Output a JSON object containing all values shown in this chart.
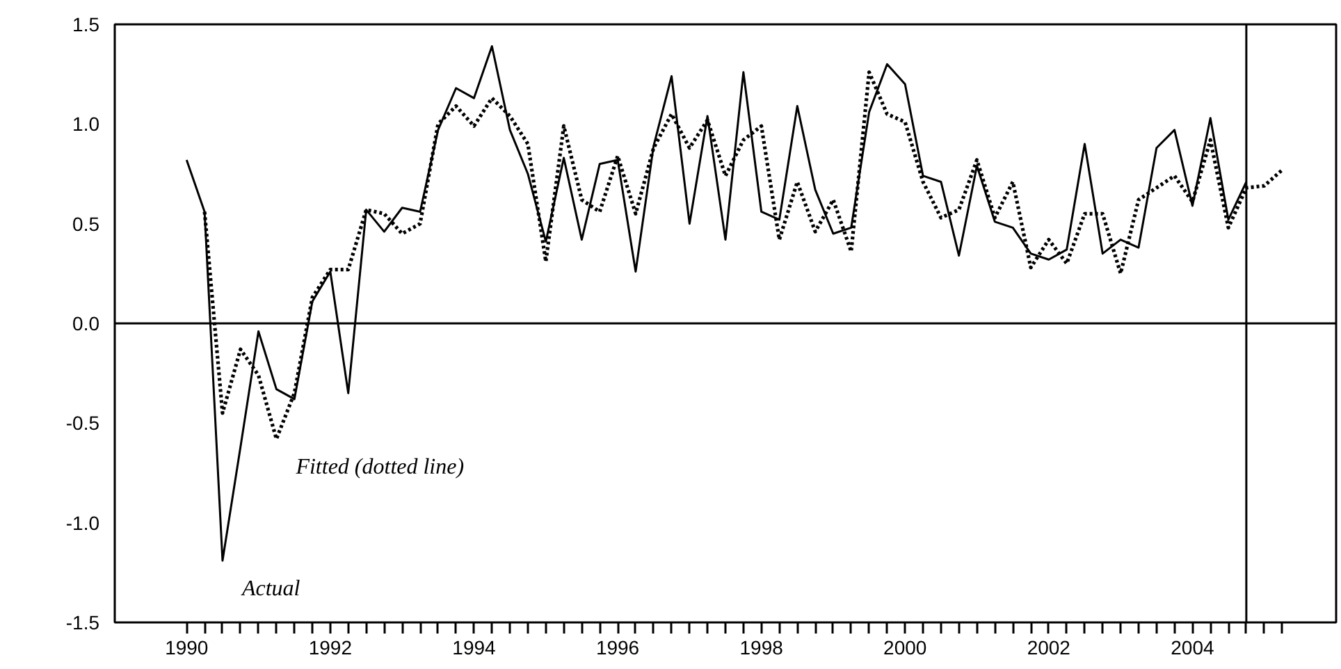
{
  "chart_data": {
    "type": "line",
    "xlim": [
      1989,
      2006
    ],
    "ylim": [
      -1.5,
      1.5
    ],
    "xticks": [
      {
        "value": 1990,
        "label": "1990"
      },
      {
        "value": 1990.25,
        "label": null
      },
      {
        "value": 1990.5,
        "label": null
      },
      {
        "value": 1990.75,
        "label": null
      },
      {
        "value": 1991,
        "label": null
      },
      {
        "value": 1991.25,
        "label": null
      },
      {
        "value": 1991.5,
        "label": null
      },
      {
        "value": 1991.75,
        "label": null
      },
      {
        "value": 1992,
        "label": "1992"
      },
      {
        "value": 1992.25,
        "label": null
      },
      {
        "value": 1992.5,
        "label": null
      },
      {
        "value": 1992.75,
        "label": null
      },
      {
        "value": 1993,
        "label": null
      },
      {
        "value": 1993.25,
        "label": null
      },
      {
        "value": 1993.5,
        "label": null
      },
      {
        "value": 1993.75,
        "label": null
      },
      {
        "value": 1994,
        "label": "1994"
      },
      {
        "value": 1994.25,
        "label": null
      },
      {
        "value": 1994.5,
        "label": null
      },
      {
        "value": 1994.75,
        "label": null
      },
      {
        "value": 1995,
        "label": null
      },
      {
        "value": 1995.25,
        "label": null
      },
      {
        "value": 1995.5,
        "label": null
      },
      {
        "value": 1995.75,
        "label": null
      },
      {
        "value": 1996,
        "label": "1996"
      },
      {
        "value": 1996.25,
        "label": null
      },
      {
        "value": 1996.5,
        "label": null
      },
      {
        "value": 1996.75,
        "label": null
      },
      {
        "value": 1997,
        "label": null
      },
      {
        "value": 1997.25,
        "label": null
      },
      {
        "value": 1997.5,
        "label": null
      },
      {
        "value": 1997.75,
        "label": null
      },
      {
        "value": 1998,
        "label": "1998"
      },
      {
        "value": 1998.25,
        "label": null
      },
      {
        "value": 1998.5,
        "label": null
      },
      {
        "value": 1998.75,
        "label": null
      },
      {
        "value": 1999,
        "label": null
      },
      {
        "value": 1999.25,
        "label": null
      },
      {
        "value": 1999.5,
        "label": null
      },
      {
        "value": 1999.75,
        "label": null
      },
      {
        "value": 2000,
        "label": "2000"
      },
      {
        "value": 2000.25,
        "label": null
      },
      {
        "value": 2000.5,
        "label": null
      },
      {
        "value": 2000.75,
        "label": null
      },
      {
        "value": 2001,
        "label": null
      },
      {
        "value": 2001.25,
        "label": null
      },
      {
        "value": 2001.5,
        "label": null
      },
      {
        "value": 2001.75,
        "label": null
      },
      {
        "value": 2002,
        "label": "2002"
      },
      {
        "value": 2002.25,
        "label": null
      },
      {
        "value": 2002.5,
        "label": null
      },
      {
        "value": 2002.75,
        "label": null
      },
      {
        "value": 2003,
        "label": null
      },
      {
        "value": 2003.25,
        "label": null
      },
      {
        "value": 2003.5,
        "label": null
      },
      {
        "value": 2003.75,
        "label": null
      },
      {
        "value": 2004,
        "label": "2004"
      },
      {
        "value": 2004.25,
        "label": null
      },
      {
        "value": 2004.5,
        "label": null
      },
      {
        "value": 2004.75,
        "label": null
      },
      {
        "value": 2005,
        "label": null
      },
      {
        "value": 2005.25,
        "label": null
      }
    ],
    "yticks": [
      {
        "value": -1.5,
        "label": "-1.5"
      },
      {
        "value": -1,
        "label": "-1.0"
      },
      {
        "value": -0.5,
        "label": "-0.5"
      },
      {
        "value": 0,
        "label": "0.0"
      },
      {
        "value": 0.5,
        "label": "0.5"
      },
      {
        "value": 1,
        "label": "1.0"
      },
      {
        "value": 1.5,
        "label": "1.5"
      }
    ],
    "grid": false,
    "legend": false,
    "marker": "none",
    "series": [
      {
        "name": "Actual",
        "color": "#000000",
        "line_style": "solid",
        "x": [
          1990,
          1990.25,
          1990.5,
          1990.75,
          1991,
          1991.25,
          1991.5,
          1991.75,
          1992,
          1992.25,
          1992.5,
          1992.75,
          1993,
          1993.25,
          1993.5,
          1993.75,
          1994,
          1994.25,
          1994.5,
          1994.75,
          1995,
          1995.25,
          1995.5,
          1995.75,
          1996,
          1996.25,
          1996.5,
          1996.75,
          1997,
          1997.25,
          1997.5,
          1997.75,
          1998,
          1998.25,
          1998.5,
          1998.75,
          1999,
          1999.25,
          1999.5,
          1999.75,
          2000,
          2000.25,
          2000.5,
          2000.75,
          2001,
          2001.25,
          2001.5,
          2001.75,
          2002,
          2002.25,
          2002.5,
          2002.75,
          2003,
          2003.25,
          2003.5,
          2003.75,
          2004,
          2004.25,
          2004.5,
          2004.75
        ],
        "values": [
          0.82,
          0.56,
          -1.19,
          -0.62,
          -0.04,
          -0.33,
          -0.38,
          0.11,
          0.26,
          -0.35,
          0.57,
          0.46,
          0.58,
          0.56,
          0.97,
          1.18,
          1.13,
          1.39,
          0.97,
          0.75,
          0.41,
          0.83,
          0.42,
          0.8,
          0.82,
          0.26,
          0.89,
          1.24,
          0.5,
          1.04,
          0.42,
          1.26,
          0.56,
          0.52,
          1.09,
          0.67,
          0.45,
          0.48,
          1.06,
          1.3,
          1.2,
          0.74,
          0.71,
          0.34,
          0.79,
          0.51,
          0.48,
          0.35,
          0.32,
          0.37,
          0.9,
          0.35,
          0.42,
          0.38,
          0.88,
          0.97,
          0.59,
          1.03,
          0.52,
          0.71
        ]
      },
      {
        "name": "Fitted (dotted line)",
        "color": "#000000",
        "line_style": "dotted",
        "x": [
          1990.25,
          1990.5,
          1990.75,
          1991,
          1991.25,
          1991.5,
          1991.75,
          1992,
          1992.25,
          1992.5,
          1992.75,
          1993,
          1993.25,
          1993.5,
          1993.75,
          1994,
          1994.25,
          1994.5,
          1994.75,
          1995,
          1995.25,
          1995.5,
          1995.75,
          1996,
          1996.25,
          1996.5,
          1996.75,
          1997,
          1997.25,
          1997.5,
          1997.75,
          1998,
          1998.25,
          1998.5,
          1998.75,
          1999,
          1999.25,
          1999.5,
          1999.75,
          2000,
          2000.25,
          2000.5,
          2000.75,
          2001,
          2001.25,
          2001.5,
          2001.75,
          2002,
          2002.25,
          2002.5,
          2002.75,
          2003,
          2003.25,
          2003.5,
          2003.75,
          2004,
          2004.25,
          2004.5,
          2004.75,
          2005,
          2005.25
        ],
        "values": [
          0.56,
          -0.45,
          -0.13,
          -0.26,
          -0.58,
          -0.35,
          0.13,
          0.27,
          0.27,
          0.57,
          0.55,
          0.45,
          0.5,
          1.0,
          1.09,
          0.99,
          1.13,
          1.04,
          0.9,
          0.31,
          0.99,
          0.62,
          0.56,
          0.84,
          0.55,
          0.88,
          1.05,
          0.88,
          1.02,
          0.74,
          0.92,
          0.99,
          0.42,
          0.71,
          0.46,
          0.62,
          0.36,
          1.26,
          1.05,
          1.01,
          0.71,
          0.53,
          0.57,
          0.82,
          0.53,
          0.71,
          0.28,
          0.42,
          0.3,
          0.55,
          0.55,
          0.25,
          0.62,
          0.68,
          0.74,
          0.61,
          0.92,
          0.48,
          0.68,
          0.69,
          0.77
        ]
      }
    ],
    "ref_lines": [
      {
        "axis": "y",
        "value": 0,
        "color": "#000000"
      },
      {
        "axis": "x",
        "value": 2004.75,
        "color": "#000000"
      }
    ]
  }
}
